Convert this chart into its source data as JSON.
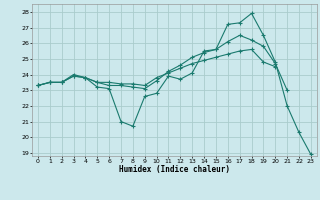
{
  "xlabel": "Humidex (Indice chaleur)",
  "xlim": [
    -0.5,
    23.5
  ],
  "ylim": [
    18.8,
    28.5
  ],
  "yticks": [
    19,
    20,
    21,
    22,
    23,
    24,
    25,
    26,
    27,
    28
  ],
  "xticks": [
    0,
    1,
    2,
    3,
    4,
    5,
    6,
    7,
    8,
    9,
    10,
    11,
    12,
    13,
    14,
    15,
    16,
    17,
    18,
    19,
    20,
    21,
    22,
    23
  ],
  "bg_color": "#cce8ec",
  "grid_color": "#aacccc",
  "line_color": "#1a7a6e",
  "series": [
    {
      "x": [
        0,
        1,
        2,
        3,
        4,
        5,
        6,
        7,
        8,
        9,
        10,
        11,
        12,
        13,
        14,
        15,
        16,
        17,
        18,
        19,
        20,
        21,
        22,
        23
      ],
      "y": [
        23.3,
        23.5,
        23.5,
        23.9,
        23.8,
        23.2,
        23.1,
        21.0,
        20.7,
        22.6,
        22.8,
        23.9,
        23.7,
        24.1,
        25.5,
        25.6,
        27.2,
        27.3,
        27.9,
        26.5,
        24.8,
        22.0,
        20.3,
        18.9
      ]
    },
    {
      "x": [
        0,
        1,
        2,
        3,
        4,
        5,
        6,
        7,
        8,
        9,
        10,
        11,
        12,
        13,
        14,
        15,
        16,
        17,
        18,
        19,
        20,
        21,
        22,
        23
      ],
      "y": [
        23.3,
        23.5,
        23.5,
        23.9,
        23.8,
        23.5,
        23.3,
        23.3,
        23.2,
        23.1,
        23.6,
        24.2,
        24.6,
        25.1,
        25.4,
        25.6,
        26.1,
        26.5,
        26.2,
        25.8,
        24.7,
        23.0,
        null,
        null
      ]
    },
    {
      "x": [
        0,
        1,
        2,
        3,
        4,
        5,
        6,
        7,
        8,
        9,
        10,
        11,
        12,
        13,
        14,
        15,
        16,
        17,
        18,
        19,
        20,
        21,
        22,
        23
      ],
      "y": [
        23.3,
        23.5,
        23.5,
        24.0,
        23.8,
        23.5,
        23.5,
        23.4,
        23.4,
        23.3,
        23.8,
        24.1,
        24.4,
        24.7,
        24.9,
        25.1,
        25.3,
        25.5,
        25.6,
        24.8,
        24.5,
        null,
        null,
        null
      ]
    }
  ]
}
